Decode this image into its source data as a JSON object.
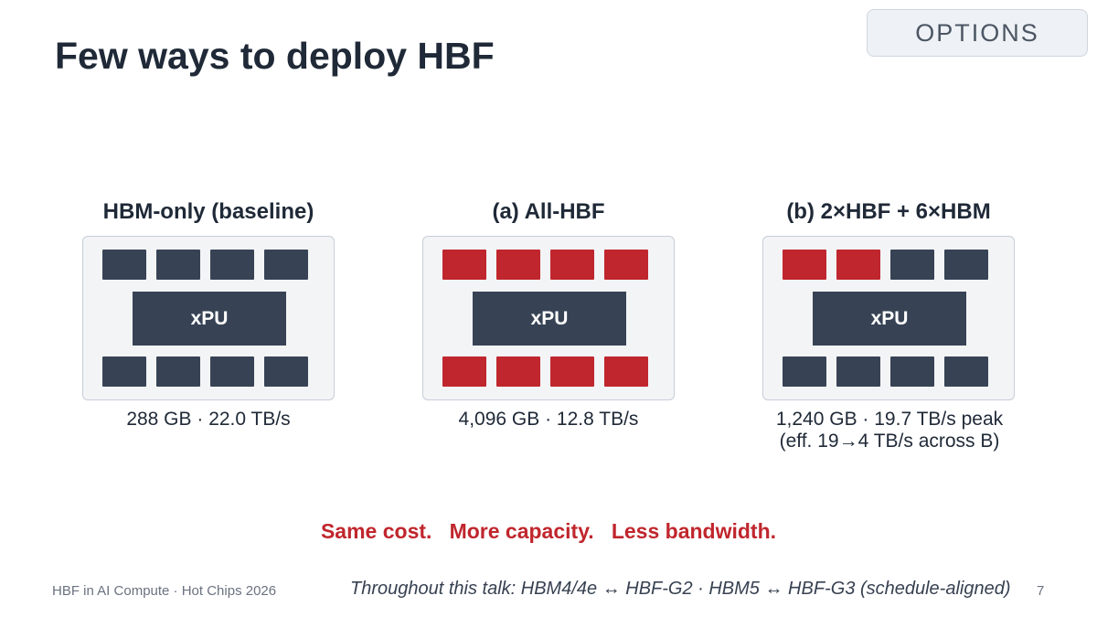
{
  "header": {
    "title": "Few ways to deploy HBF",
    "tag": "OPTIONS"
  },
  "configs": [
    {
      "title": "HBM-only (baseline)",
      "top_row": [
        "hbm",
        "hbm",
        "hbm",
        "hbm"
      ],
      "bottom_row": [
        "hbm",
        "hbm",
        "hbm",
        "hbm"
      ],
      "processor": "xPU",
      "stats": [
        "288 GB · 22.0 TB/s"
      ]
    },
    {
      "title": "(a) All-HBF",
      "top_row": [
        "hbf",
        "hbf",
        "hbf",
        "hbf"
      ],
      "bottom_row": [
        "hbf",
        "hbf",
        "hbf",
        "hbf"
      ],
      "processor": "xPU",
      "stats": [
        "4,096 GB · 12.8 TB/s"
      ]
    },
    {
      "title": "(b) 2×HBF + 6×HBM",
      "top_row": [
        "hbf",
        "hbf",
        "hbm",
        "hbm"
      ],
      "bottom_row": [
        "hbm",
        "hbm",
        "hbm",
        "hbm"
      ],
      "processor": "xPU",
      "stats": [
        "1,240 GB · 19.7 TB/s peak",
        "(eff. 19→4 TB/s across B)"
      ]
    }
  ],
  "colors": {
    "hbm": "#374355",
    "hbf": "#c0262d"
  },
  "tagline": "Same cost.   More capacity.   Less bandwidth.",
  "footer": {
    "left": "HBF in AI Compute · Hot Chips 2026",
    "note": "Throughout this talk: HBM4/4e ↔ HBF-G2 · HBM5 ↔ HBF-G3 (schedule-aligned)",
    "page": "7"
  }
}
